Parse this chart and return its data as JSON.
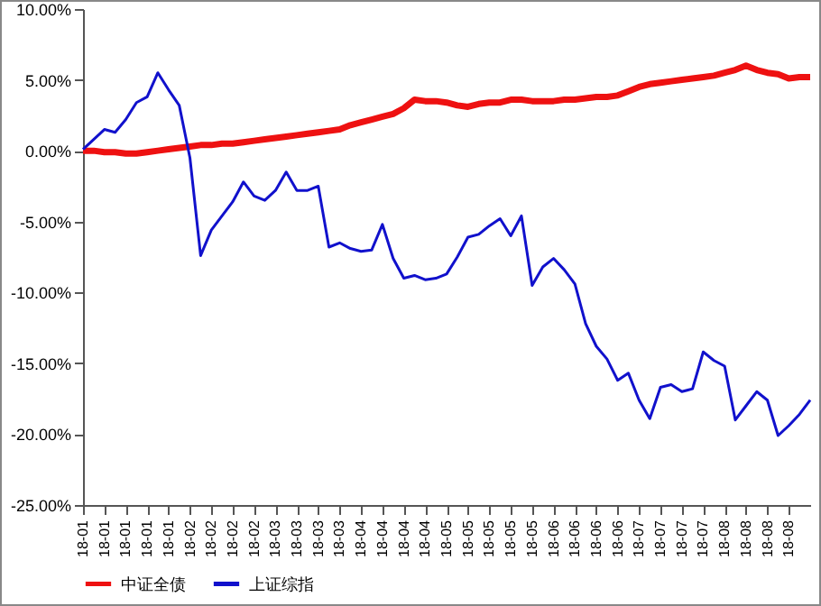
{
  "chart_data": {
    "type": "line",
    "categories": [
      "18-01",
      null,
      "18-01",
      null,
      "18-01",
      null,
      "18-01",
      null,
      "18-01",
      null,
      "18-02",
      null,
      "18-02",
      null,
      "18-02",
      null,
      "18-02",
      null,
      "18-03",
      null,
      "18-03",
      null,
      "18-03",
      null,
      "18-03",
      null,
      "18-04",
      null,
      "18-04",
      null,
      "18-04",
      null,
      "18-04",
      null,
      "18-05",
      null,
      "18-05",
      null,
      "18-05",
      null,
      "18-05",
      null,
      "18-05",
      null,
      "18-06",
      null,
      "18-06",
      null,
      "18-06",
      null,
      "18-06",
      null,
      "18-07",
      null,
      "18-07",
      null,
      "18-07",
      null,
      "18-07",
      null,
      "18-08",
      null,
      "18-08",
      null,
      "18-08",
      null,
      "18-08",
      null,
      null
    ],
    "series": [
      {
        "name": "中证全债",
        "color": "#ee1111",
        "values": [
          0,
          0,
          -0.1,
          -0.1,
          -0.2,
          -0.2,
          -0.1,
          0,
          0.1,
          0.2,
          0.3,
          0.4,
          0.4,
          0.5,
          0.5,
          0.6,
          0.7,
          0.8,
          0.9,
          1.0,
          1.1,
          1.2,
          1.3,
          1.4,
          1.5,
          1.8,
          2.0,
          2.2,
          2.4,
          2.6,
          3.0,
          3.6,
          3.5,
          3.5,
          3.4,
          3.2,
          3.1,
          3.3,
          3.4,
          3.4,
          3.6,
          3.6,
          3.5,
          3.5,
          3.5,
          3.6,
          3.6,
          3.7,
          3.8,
          3.8,
          3.9,
          4.2,
          4.5,
          4.7,
          4.8,
          4.9,
          5.0,
          5.1,
          5.2,
          5.3,
          5.5,
          5.7,
          6.0,
          5.7,
          5.5,
          5.4,
          5.1,
          5.2,
          5.2
        ]
      },
      {
        "name": "上证综指",
        "color": "#1111cc",
        "values": [
          0.1,
          0.8,
          1.5,
          1.3,
          2.2,
          3.4,
          3.8,
          5.5,
          4.3,
          3.2,
          -0.5,
          -7.4,
          -5.6,
          -4.6,
          -3.6,
          -2.2,
          -3.2,
          -3.5,
          -2.8,
          -1.5,
          -2.8,
          -2.8,
          -2.5,
          -6.8,
          -6.5,
          -6.9,
          -7.1,
          -7.0,
          -5.2,
          -7.6,
          -9.0,
          -8.8,
          -9.1,
          -9.0,
          -8.7,
          -7.5,
          -6.1,
          -5.9,
          -5.3,
          -4.8,
          -6.0,
          -4.6,
          -9.5,
          -8.2,
          -7.6,
          -8.4,
          -9.4,
          -12.2,
          -13.8,
          -14.7,
          -16.2,
          -15.7,
          -17.6,
          -18.9,
          -16.7,
          -16.5,
          -17.0,
          -16.8,
          -14.2,
          -14.8,
          -15.2,
          -19.0,
          -18.0,
          -17.0,
          -17.6,
          -20.1,
          -19.4,
          -18.6,
          -17.6
        ]
      }
    ],
    "ylim": [
      -25,
      10
    ],
    "yticks": [
      {
        "value": -25,
        "label": "-25.00%"
      },
      {
        "value": -20,
        "label": "-20.00%"
      },
      {
        "value": -15,
        "label": "-15.00%"
      },
      {
        "value": -10,
        "label": "-10.00%"
      },
      {
        "value": -5,
        "label": "-5.00%"
      },
      {
        "value": 0,
        "label": "0.00%"
      },
      {
        "value": 5,
        "label": "5.00%"
      },
      {
        "value": 10,
        "label": "10.00%"
      }
    ],
    "grid": false,
    "legend": "bottom",
    "marker": "none",
    "line_style": "solid"
  }
}
